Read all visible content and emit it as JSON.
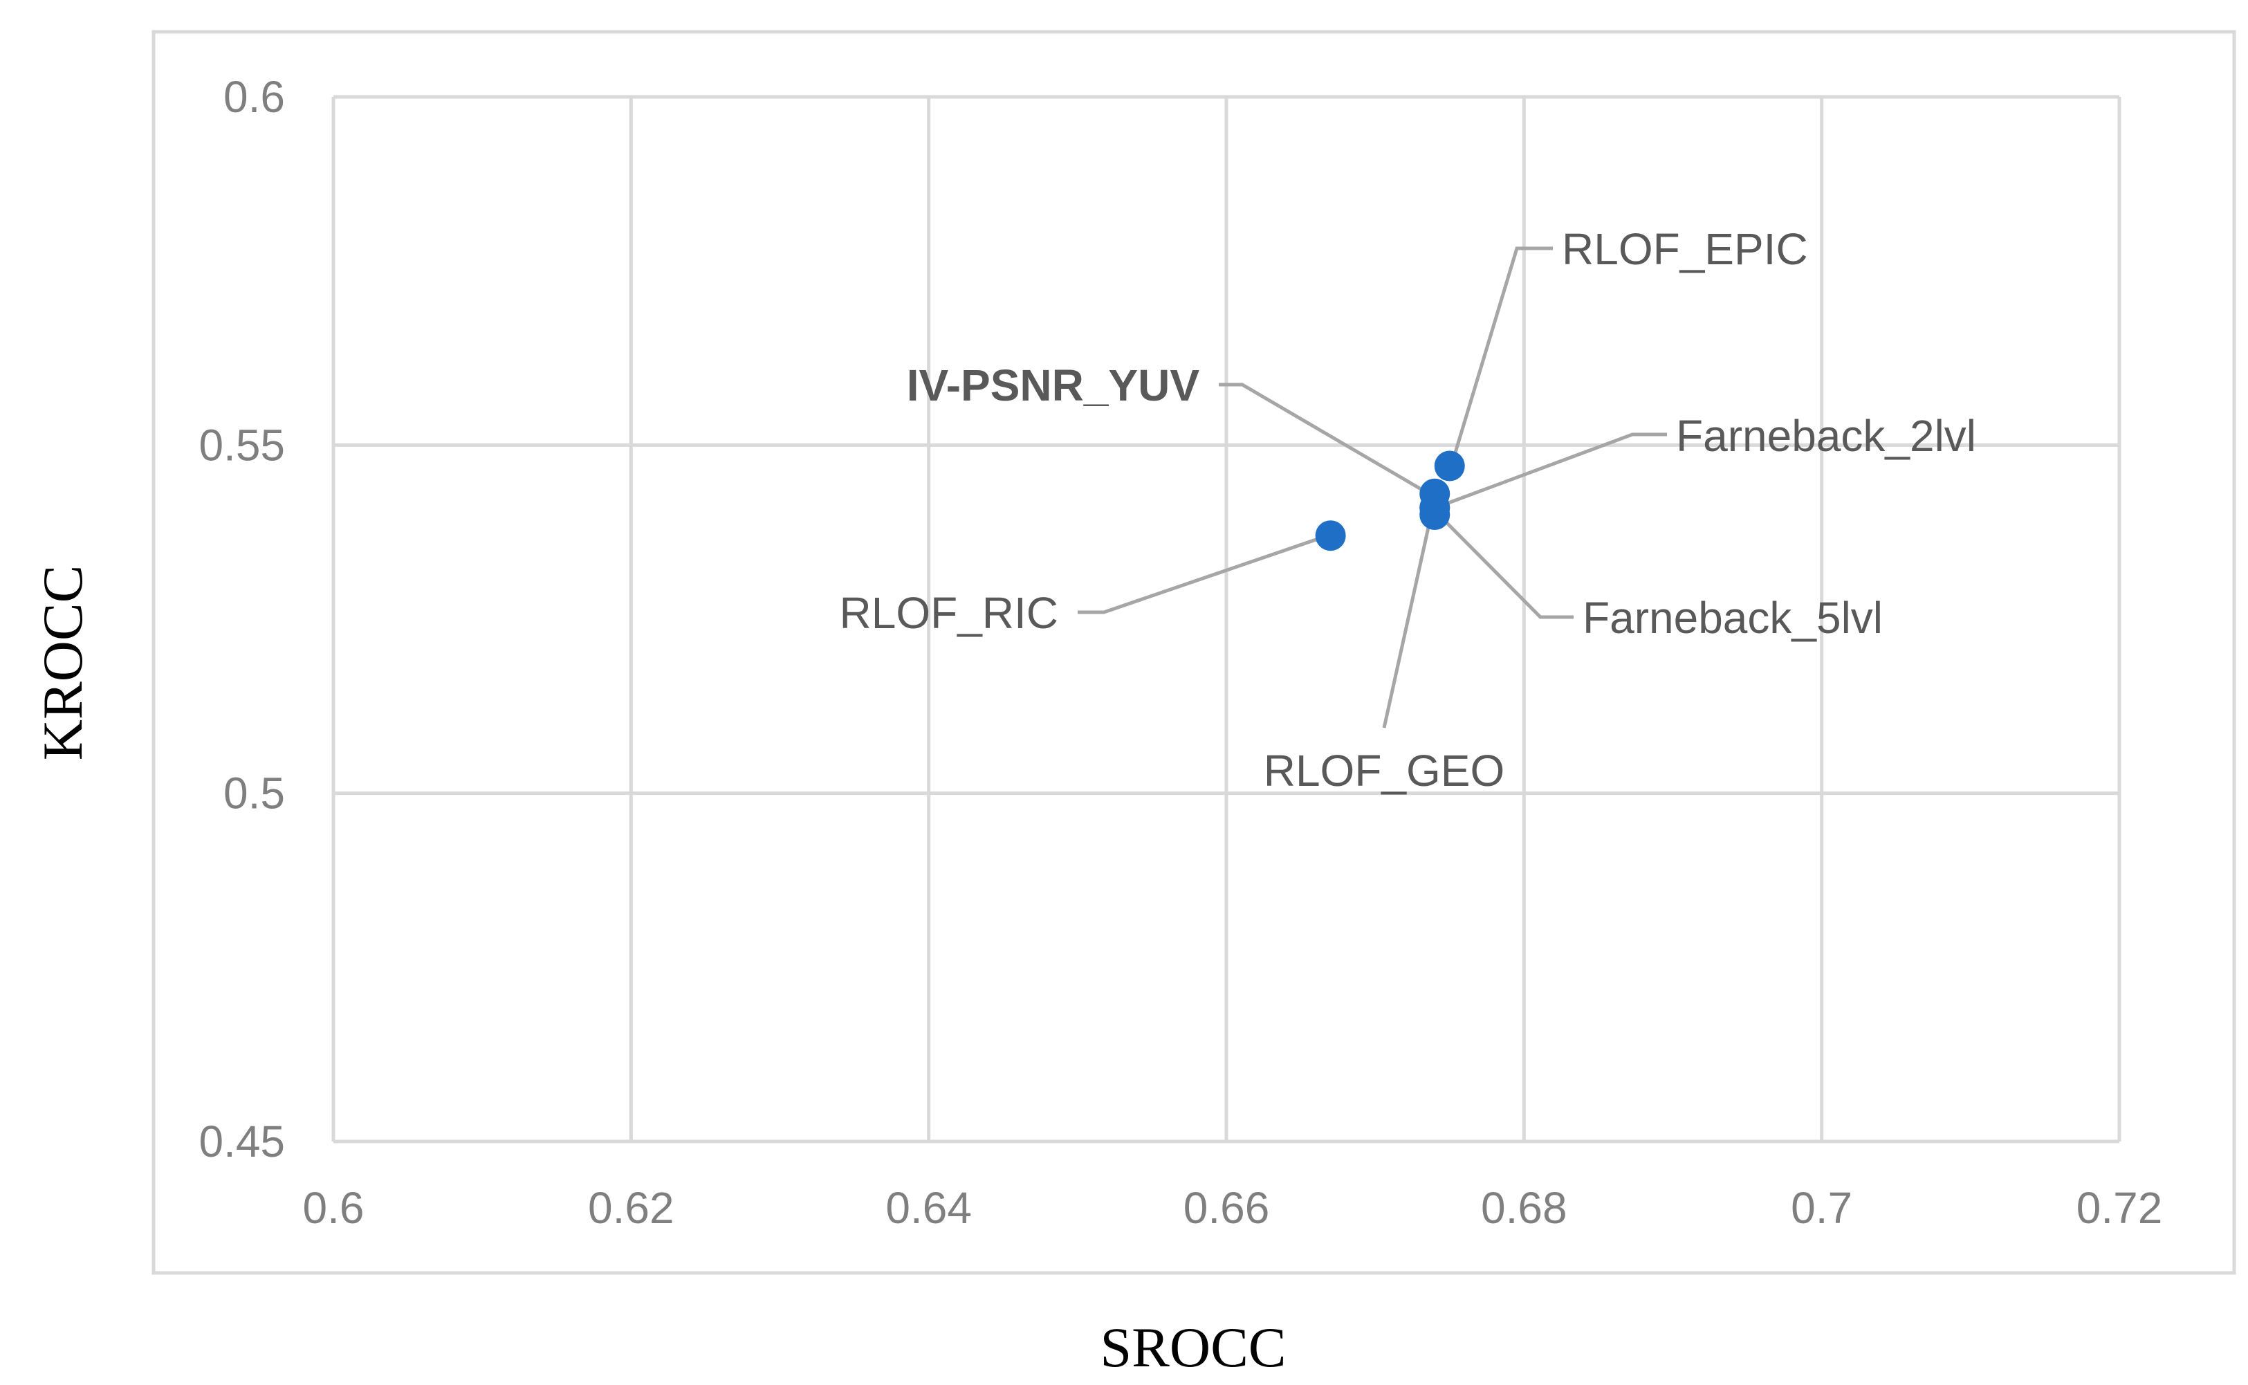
{
  "chart_data": {
    "type": "scatter",
    "xlabel": "SROCC",
    "ylabel": "KROCC",
    "xlim": [
      0.6,
      0.72
    ],
    "ylim": [
      0.45,
      0.6
    ],
    "x_ticks": [
      "0.6",
      "0.62",
      "0.64",
      "0.66",
      "0.68",
      "0.7",
      "0.72"
    ],
    "y_ticks": [
      "0.45",
      "0.5",
      "0.55",
      "0.6"
    ],
    "grid": true,
    "legend": "none",
    "marker_color": "#1f6fc6",
    "points": [
      {
        "label": "RLOF_EPIC",
        "x": 0.675,
        "y": 0.547,
        "bold": false
      },
      {
        "label": "IV-PSNR_YUV",
        "x": 0.674,
        "y": 0.543,
        "bold": true
      },
      {
        "label": "Farneback_2lvl",
        "x": 0.674,
        "y": 0.541,
        "bold": false
      },
      {
        "label": "Farneback_5lvl",
        "x": 0.674,
        "y": 0.54,
        "bold": false
      },
      {
        "label": "RLOF_GEO",
        "x": 0.674,
        "y": 0.541,
        "bold": false
      },
      {
        "label": "RLOF_RIC",
        "x": 0.667,
        "y": 0.537,
        "bold": false
      }
    ]
  }
}
